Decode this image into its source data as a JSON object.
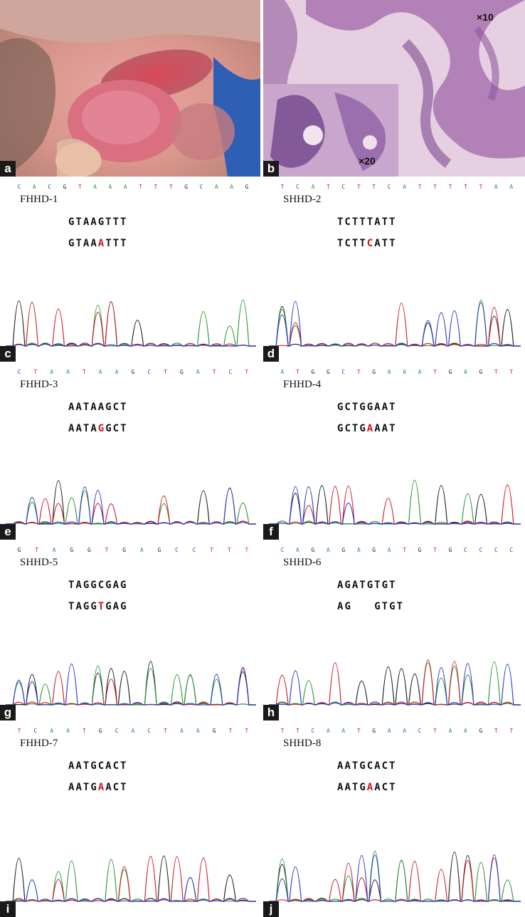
{
  "panels": {
    "a": {
      "label": "a"
    },
    "b": {
      "label": "b",
      "mag_low": "×10",
      "mag_high": "×20"
    }
  },
  "chromatograms": [
    {
      "label": "c",
      "id": "FHHD-1",
      "ref": "GTAAGTTT",
      "mut": "GTAAATTT",
      "mut_pos": 4,
      "strip": "CACGTAAATTTGCAAG"
    },
    {
      "label": "d",
      "id": "SHHD-2",
      "ref": "TCTTTATT",
      "mut": "TCTTCATT",
      "mut_pos": 4,
      "strip": "TCATCTTCATTTTTAA"
    },
    {
      "label": "e",
      "id": "FHHD-3",
      "ref": "AATAAGCT",
      "mut": "AATAGGCT",
      "mut_pos": 4,
      "strip": "CTAATAAGCTGATCT"
    },
    {
      "label": "f",
      "id": "FHHD-4",
      "ref": "GCTGGAAT",
      "mut": "GCTGAAAT",
      "mut_pos": 4,
      "strip": "ATGGCTGAAATGAGTT"
    },
    {
      "label": "g",
      "id": "SHHD-5",
      "ref": "TAGGCGAG",
      "mut": "TAGGTGAG",
      "mut_pos": 4,
      "strip": "GTAGGTGAGCCTTT"
    },
    {
      "label": "h",
      "id": "SHHD-6",
      "ref": "AGATGTGT",
      "mut": "AG   GTGT",
      "mut_pos": -1,
      "strip": "CAGAGAGATGTGCCCC"
    },
    {
      "label": "i",
      "id": "FHHD-7",
      "ref": "AATGCACT",
      "mut": "AATGAACT",
      "mut_pos": 4,
      "strip": "TCAATGCACTAAGTT"
    },
    {
      "label": "j",
      "id": "SHHD-8",
      "ref": "AATGCACT",
      "mut": "AATGAACT",
      "mut_pos": 4,
      "strip": "TTCAATGAACTAAGTT"
    }
  ],
  "colors": {
    "A": "#2e9a3a",
    "C": "#3040c8",
    "G": "#222222",
    "T": "#d0202a",
    "mutation": "#d0141a"
  }
}
